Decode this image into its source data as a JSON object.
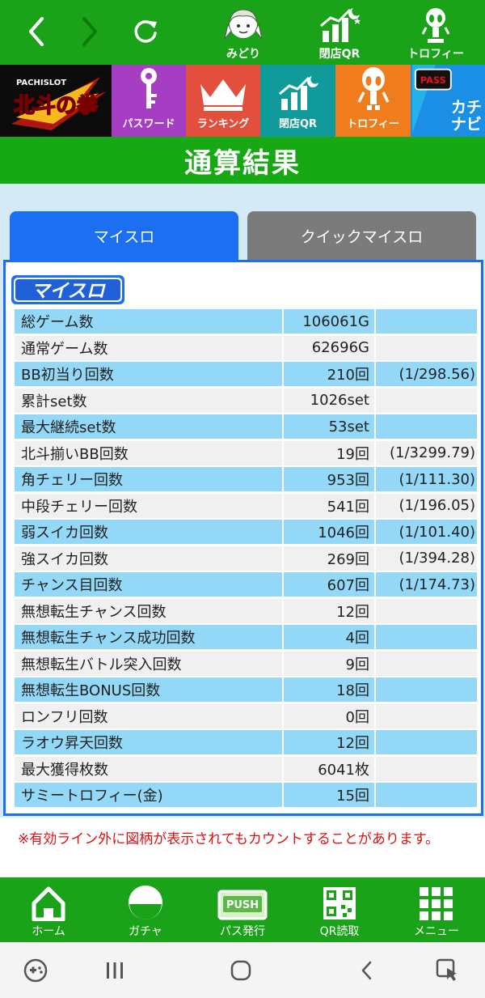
{
  "top_nav": {
    "items": [
      {
        "label": "みどり",
        "icon": "character-icon"
      },
      {
        "label": "閉店QR",
        "icon": "chart-moon-icon"
      },
      {
        "label": "トロフィー",
        "icon": "alien-trophy-icon"
      }
    ]
  },
  "banner": {
    "logo_text": "北斗の拳",
    "logo_sub": "PACHISLOT",
    "tiles": [
      {
        "label": "パスワード",
        "icon": "key-icon",
        "color": "#a53ec2"
      },
      {
        "label": "ランキング",
        "icon": "crown-icon",
        "color": "#e2503d"
      },
      {
        "label": "閉店QR",
        "icon": "chart-moon-icon",
        "color": "#119a9a"
      },
      {
        "label": "トロフィー",
        "icon": "alien-icon",
        "color": "#ef7d1e"
      }
    ],
    "kachinavi_text": "カチナビ",
    "pass_text": "PASS"
  },
  "title": "通算結果",
  "tabs": {
    "active": "マイスロ",
    "inactive": "クイックマイスロ"
  },
  "panel": {
    "logo_text": "マイスロ",
    "rows": [
      {
        "label": "総ゲーム数",
        "value": "106061G",
        "ratio": ""
      },
      {
        "label": "通常ゲーム数",
        "value": "62696G",
        "ratio": ""
      },
      {
        "label": "BB初当り回数",
        "value": "210回",
        "ratio": "(1/298.56)"
      },
      {
        "label": "累計set数",
        "value": "1026set",
        "ratio": ""
      },
      {
        "label": "最大継続set数",
        "value": "53set",
        "ratio": ""
      },
      {
        "label": "北斗揃いBB回数",
        "value": "19回",
        "ratio": "(1/3299.79)"
      },
      {
        "label": "角チェリー回数",
        "value": "953回",
        "ratio": "(1/111.30)"
      },
      {
        "label": "中段チェリー回数",
        "value": "541回",
        "ratio": "(1/196.05)"
      },
      {
        "label": "弱スイカ回数",
        "value": "1046回",
        "ratio": "(1/101.40)"
      },
      {
        "label": "強スイカ回数",
        "value": "269回",
        "ratio": "(1/394.28)"
      },
      {
        "label": "チャンス目回数",
        "value": "607回",
        "ratio": "(1/174.73)"
      },
      {
        "label": "無想転生チャンス回数",
        "value": "12回",
        "ratio": ""
      },
      {
        "label": "無想転生チャンス成功回数",
        "value": "4回",
        "ratio": ""
      },
      {
        "label": "無想転生バトル突入回数",
        "value": "9回",
        "ratio": ""
      },
      {
        "label": "無想転生BONUS回数",
        "value": "18回",
        "ratio": ""
      },
      {
        "label": "ロンフリ回数",
        "value": "0回",
        "ratio": ""
      },
      {
        "label": "ラオウ昇天回数",
        "value": "12回",
        "ratio": ""
      },
      {
        "label": "最大獲得枚数",
        "value": "6041枚",
        "ratio": ""
      },
      {
        "label": "サミートロフィー(金)",
        "value": "15回",
        "ratio": ""
      }
    ]
  },
  "note": "※有効ライン外に図柄が表示されてもカウントすることがあります。",
  "bottom_nav": {
    "items": [
      {
        "label": "ホーム",
        "icon": "home-icon"
      },
      {
        "label": "ガチャ",
        "icon": "gacha-ball-icon"
      },
      {
        "label": "パス発行",
        "icon": "push-pass-icon"
      },
      {
        "label": "QR読取",
        "icon": "qr-code-icon"
      },
      {
        "label": "メニュー",
        "icon": "grid-menu-icon"
      }
    ],
    "push_text": "PUSH"
  },
  "colors": {
    "green": "#1aa319",
    "blue_accent": "#1d6ff2",
    "row_blue": "#93d8f6",
    "row_gray": "#f0f0f0",
    "note_red": "#e01010"
  }
}
